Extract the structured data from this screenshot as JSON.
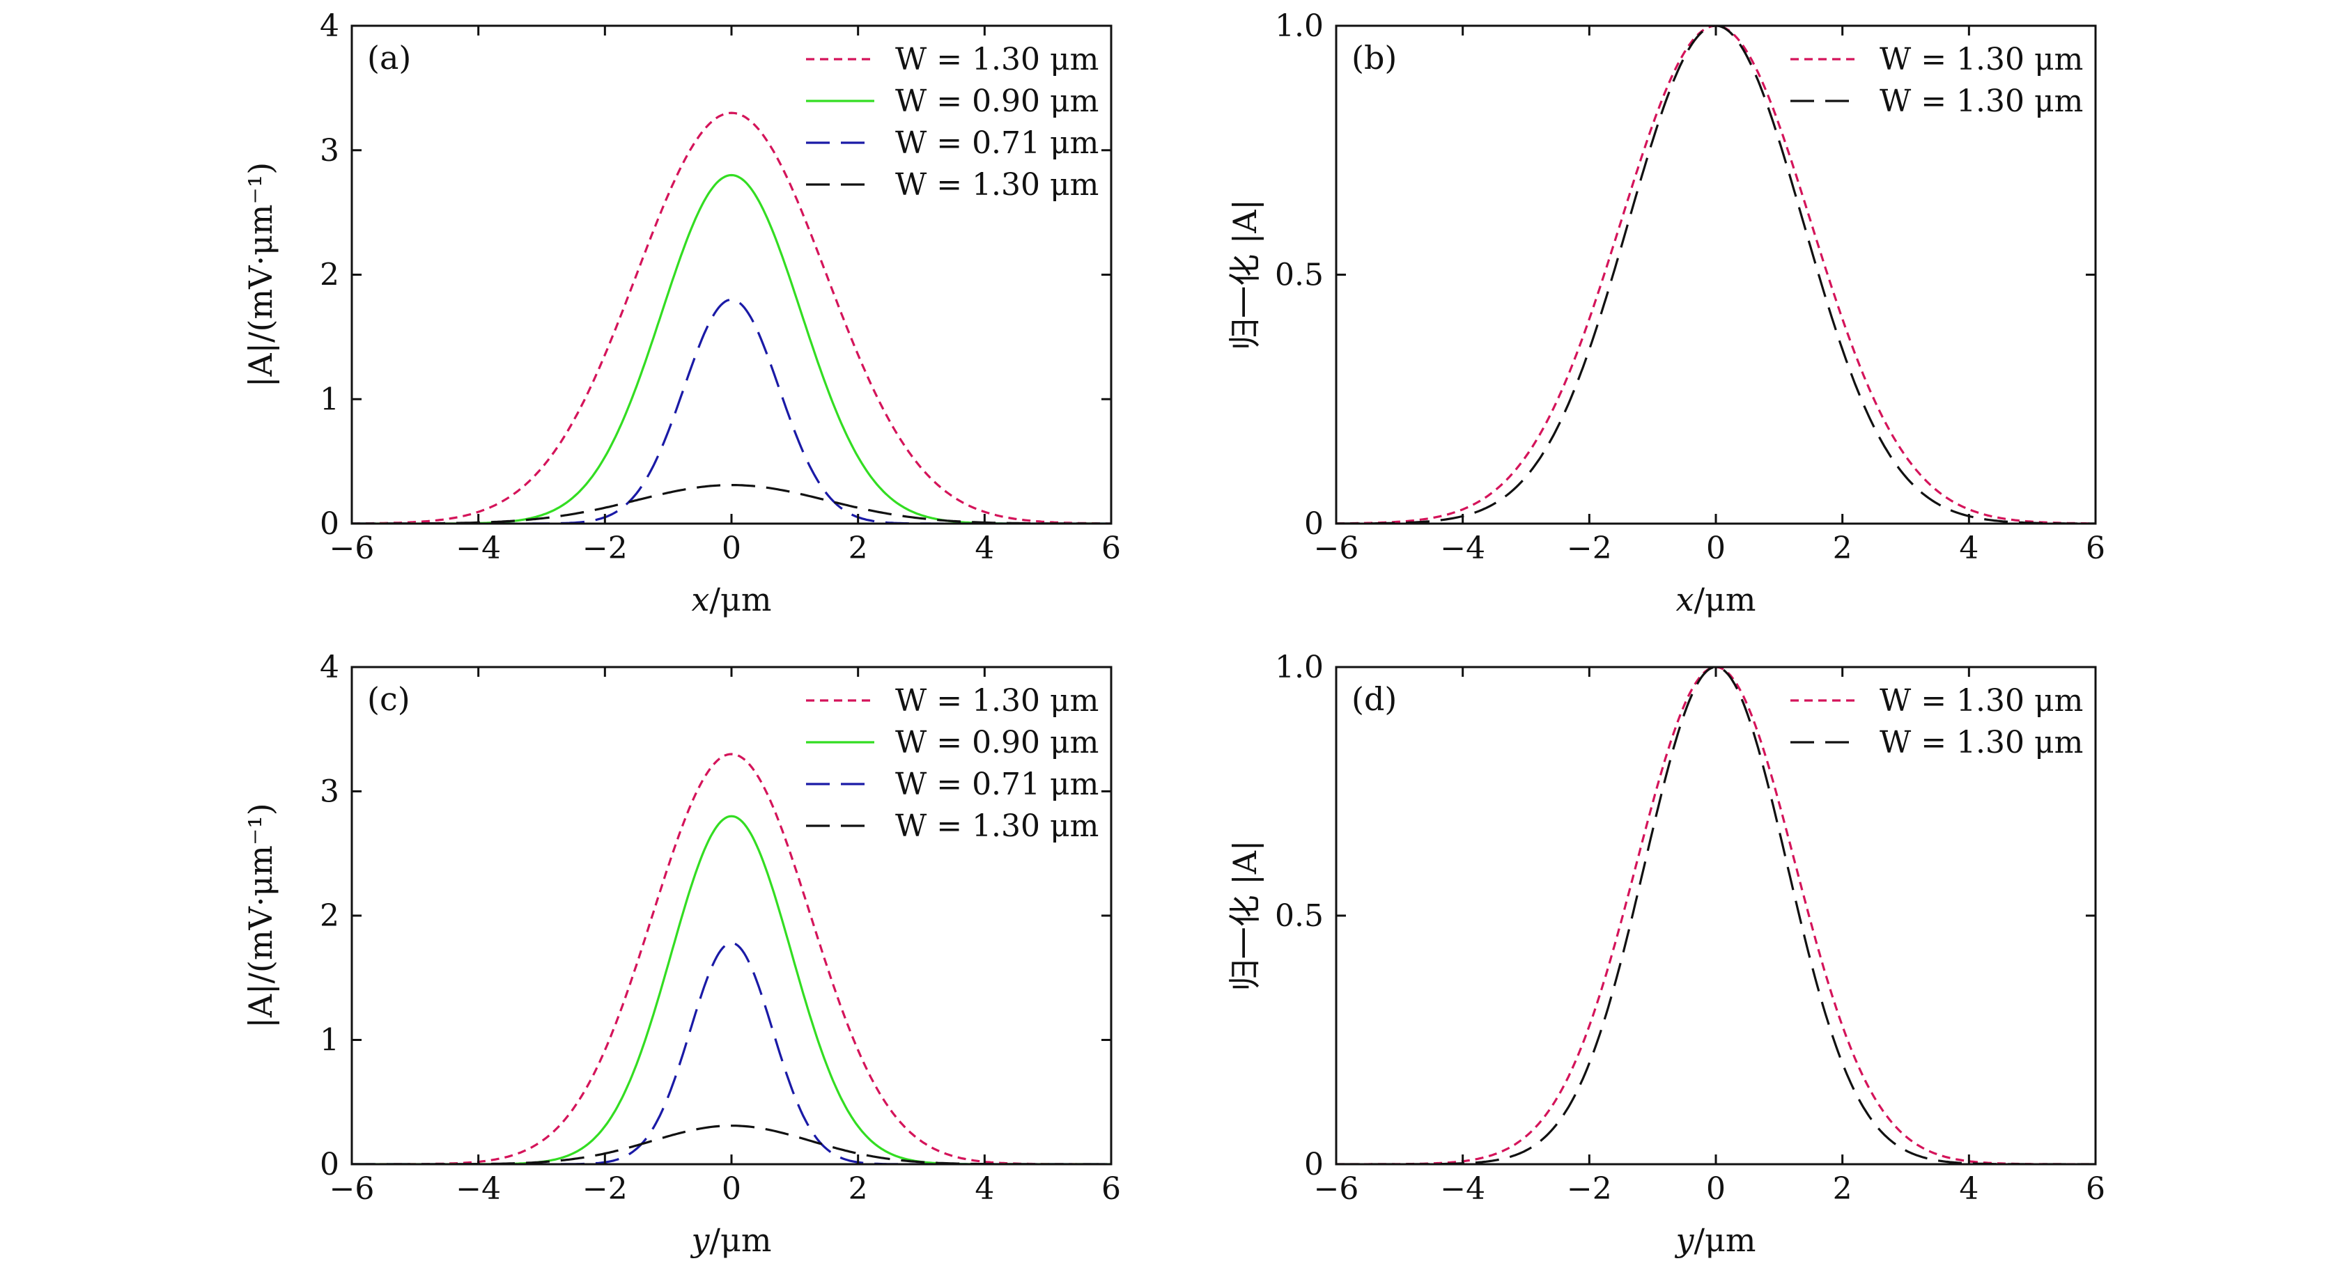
{
  "chart_data": [
    {
      "type": "line",
      "panel_label": "(a)",
      "xlabel": {
        "var": "x",
        "unit": "/μm"
      },
      "ylabel": "|A|/(mV·μm⁻¹)",
      "xlim": [
        -6,
        6
      ],
      "ylim": [
        0,
        4
      ],
      "xticks": [
        -6,
        -4,
        -2,
        0,
        2,
        4,
        6
      ],
      "yticks": [
        0,
        1,
        2,
        3,
        4
      ],
      "xtick_labels": [
        "−6",
        "−4",
        "−2",
        "0",
        "2",
        "4",
        "6"
      ],
      "ytick_labels": [
        "0",
        "1",
        "2",
        "3",
        "4"
      ],
      "legend_position": "top-right",
      "series": [
        {
          "name": "W = 1.30 μm",
          "color": "#d4145a",
          "dash": "short-dash",
          "amplitude": 3.3,
          "width": 1.5
        },
        {
          "name": "W = 0.90 μm",
          "color": "#33dd22",
          "dash": "solid",
          "amplitude": 2.8,
          "width": 1.1
        },
        {
          "name": "W = 0.71 μm",
          "color": "#1a1aa6",
          "dash": "long-dash",
          "amplitude": 1.8,
          "width": 0.75
        },
        {
          "name": "W = 1.30 μm",
          "color": "#111111",
          "dash": "long-dash",
          "amplitude": 0.31,
          "width": 1.5
        }
      ]
    },
    {
      "type": "line",
      "panel_label": "(b)",
      "xlabel": {
        "var": "x",
        "unit": "/μm"
      },
      "ylabel": "归一化 |A|",
      "xlim": [
        -6,
        6
      ],
      "ylim": [
        0,
        1
      ],
      "xticks": [
        -6,
        -4,
        -2,
        0,
        2,
        4,
        6
      ],
      "yticks": [
        0,
        0.5,
        1
      ],
      "xtick_labels": [
        "−6",
        "−4",
        "−2",
        "0",
        "2",
        "4",
        "6"
      ],
      "ytick_labels": [
        "0",
        "0.5",
        "1.0"
      ],
      "legend_position": "top-right",
      "series": [
        {
          "name": "W = 1.30 μm",
          "color": "#d4145a",
          "dash": "short-dash",
          "amplitude": 1.0,
          "width": 1.5
        },
        {
          "name": "W = 1.30 μm",
          "color": "#111111",
          "dash": "long-dash",
          "amplitude": 1.0,
          "width": 1.38
        }
      ]
    },
    {
      "type": "line",
      "panel_label": "(c)",
      "xlabel": {
        "var": "y",
        "unit": "/μm"
      },
      "ylabel": "|A|/(mV·μm⁻¹)",
      "xlim": [
        -6,
        6
      ],
      "ylim": [
        0,
        4
      ],
      "xticks": [
        -6,
        -4,
        -2,
        0,
        2,
        4,
        6
      ],
      "yticks": [
        0,
        1,
        2,
        3,
        4
      ],
      "xtick_labels": [
        "−6",
        "−4",
        "−2",
        "0",
        "2",
        "4",
        "6"
      ],
      "ytick_labels": [
        "0",
        "1",
        "2",
        "3",
        "4"
      ],
      "legend_position": "top-right",
      "series": [
        {
          "name": "W = 1.30 μm",
          "color": "#d4145a",
          "dash": "short-dash",
          "amplitude": 3.3,
          "width": 1.25
        },
        {
          "name": "W = 0.90 μm",
          "color": "#33dd22",
          "dash": "solid",
          "amplitude": 2.8,
          "width": 0.95
        },
        {
          "name": "W = 0.71 μm",
          "color": "#1a1aa6",
          "dash": "long-dash",
          "amplitude": 1.78,
          "width": 0.65
        },
        {
          "name": "W = 1.30 μm",
          "color": "#111111",
          "dash": "long-dash",
          "amplitude": 0.31,
          "width": 1.25
        }
      ]
    },
    {
      "type": "line",
      "panel_label": "(d)",
      "xlabel": {
        "var": "y",
        "unit": "/μm"
      },
      "ylabel": "归一化 |A|",
      "xlim": [
        -6,
        6
      ],
      "ylim": [
        0,
        1
      ],
      "xticks": [
        -6,
        -4,
        -2,
        0,
        2,
        4,
        6
      ],
      "yticks": [
        0,
        0.5,
        1
      ],
      "xtick_labels": [
        "−6",
        "−4",
        "−2",
        "0",
        "2",
        "4",
        "6"
      ],
      "ytick_labels": [
        "0",
        "0.5",
        "1.0"
      ],
      "legend_position": "top-right",
      "series": [
        {
          "name": "W = 1.30 μm",
          "color": "#d4145a",
          "dash": "short-dash",
          "amplitude": 1.0,
          "width": 1.25
        },
        {
          "name": "W = 1.30 μm",
          "color": "#111111",
          "dash": "long-dash",
          "amplitude": 1.0,
          "width": 1.12
        }
      ]
    }
  ]
}
